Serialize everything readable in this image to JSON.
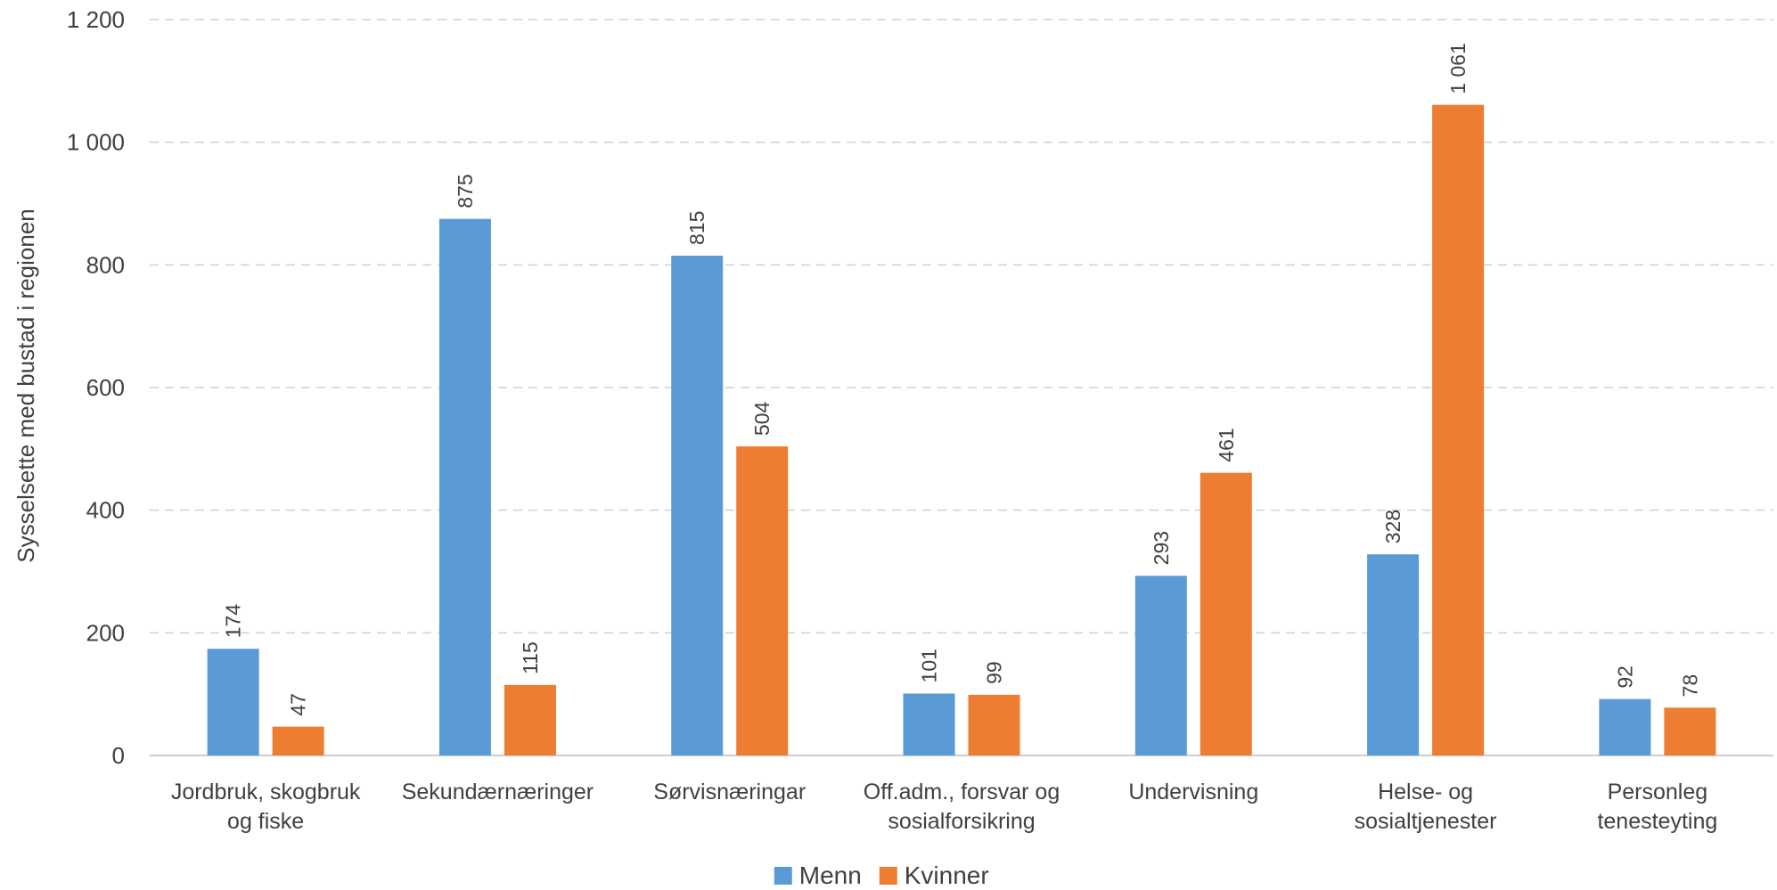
{
  "chart_data": {
    "type": "bar",
    "categories": [
      [
        "Jordbruk, skogbruk",
        "og fiske"
      ],
      [
        "Sekundærnæringer"
      ],
      [
        "Sørvisnæringar"
      ],
      [
        "Off.adm., forsvar og",
        "sosialforsikring"
      ],
      [
        "Undervisning"
      ],
      [
        "Helse- og",
        "sosialtjenester"
      ],
      [
        "Personleg",
        "tenesteyting"
      ]
    ],
    "series": [
      {
        "name": "Menn",
        "color": "#5b9bd5",
        "values": [
          174,
          875,
          815,
          101,
          293,
          328,
          92
        ],
        "labels": [
          "174",
          "875",
          "815",
          "101",
          "293",
          "328",
          "92"
        ]
      },
      {
        "name": "Kvinner",
        "color": "#ed7d31",
        "values": [
          47,
          115,
          504,
          99,
          461,
          1061,
          78
        ],
        "labels": [
          "47",
          "115",
          "504",
          "99",
          "461",
          "1 061",
          "78"
        ]
      }
    ],
    "ylabel": "Sysselsette med bustad i regionen",
    "ylim": [
      0,
      1200
    ],
    "yticks": [
      0,
      200,
      400,
      600,
      800,
      1000,
      1200
    ],
    "ytick_labels": [
      "0",
      "200",
      "400",
      "600",
      "800",
      "1 000",
      "1 200"
    ],
    "grid": true,
    "legend_position": "bottom"
  }
}
